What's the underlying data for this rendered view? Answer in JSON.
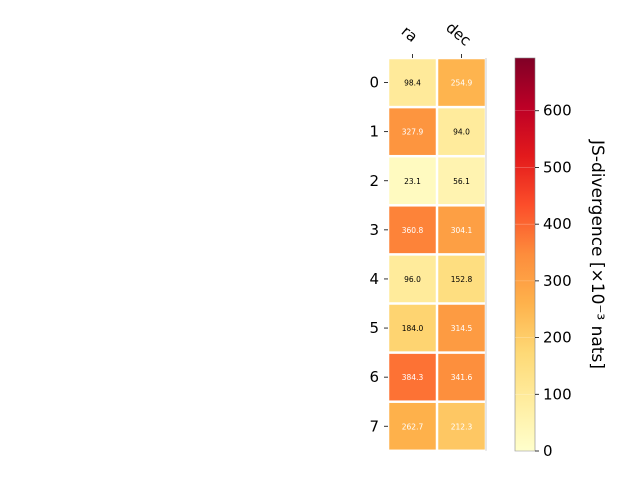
{
  "chart_data": {
    "type": "heatmap",
    "columns": [
      "ra",
      "dec"
    ],
    "rows": [
      "0",
      "1",
      "2",
      "3",
      "4",
      "5",
      "6",
      "7"
    ],
    "values": [
      [
        98.4,
        254.9
      ],
      [
        327.9,
        94.0
      ],
      [
        23.1,
        56.1
      ],
      [
        360.8,
        304.1
      ],
      [
        96.0,
        152.8
      ],
      [
        184.0,
        314.5
      ],
      [
        384.3,
        341.6
      ],
      [
        262.7,
        212.3
      ]
    ],
    "value_labels": [
      [
        "98.4",
        "254.9"
      ],
      [
        "327.9",
        "94.0"
      ],
      [
        "23.1",
        "56.1"
      ],
      [
        "360.8",
        "304.1"
      ],
      [
        "96.0",
        "152.8"
      ],
      [
        "184.0",
        "314.5"
      ],
      [
        "384.3",
        "341.6"
      ],
      [
        "262.7",
        "212.3"
      ]
    ],
    "colorbar": {
      "label": "JS-divergence [×10⁻³ nats]",
      "range": [
        0,
        693
      ],
      "ticks": [
        0,
        100,
        200,
        300,
        400,
        500,
        600
      ],
      "colormap": "YlOrRd"
    },
    "text_color_threshold": 200,
    "grid": false,
    "legend": "none"
  }
}
